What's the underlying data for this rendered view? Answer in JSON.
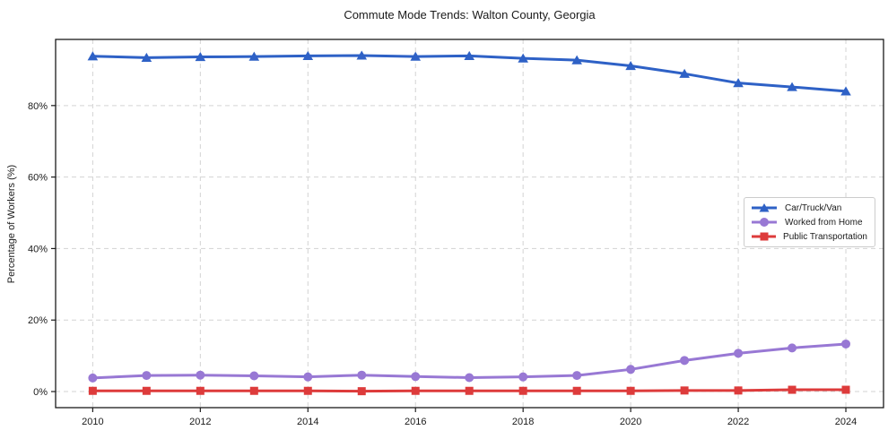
{
  "title": "Commute Mode Trends: Walton County, Georgia",
  "ylabel": "Percentage of Workers (%)",
  "chart_data": {
    "type": "line",
    "title": "Commute Mode Trends: Walton County, Georgia",
    "xlabel": "",
    "ylabel": "Percentage of Workers (%)",
    "x": [
      2010,
      2011,
      2012,
      2013,
      2014,
      2015,
      2016,
      2017,
      2018,
      2019,
      2020,
      2021,
      2022,
      2023,
      2024
    ],
    "series": [
      {
        "name": "Car/Truck/Van",
        "color": "#2e61c6",
        "marker": "triangle",
        "values": [
          93.8,
          93.4,
          93.6,
          93.7,
          93.9,
          94.0,
          93.7,
          93.9,
          93.2,
          92.7,
          91.1,
          88.9,
          86.3,
          85.2,
          84.0
        ]
      },
      {
        "name": "Worked from Home",
        "color": "#9878d4",
        "marker": "circle",
        "values": [
          3.8,
          4.5,
          4.6,
          4.4,
          4.1,
          4.6,
          4.2,
          3.9,
          4.1,
          4.5,
          6.2,
          8.7,
          10.7,
          12.2,
          13.3
        ]
      },
      {
        "name": "Public Transportation",
        "color": "#dd3b3b",
        "marker": "square",
        "values": [
          0.2,
          0.2,
          0.2,
          0.2,
          0.2,
          0.1,
          0.2,
          0.2,
          0.2,
          0.2,
          0.2,
          0.3,
          0.3,
          0.5,
          0.5
        ]
      }
    ],
    "xticks": [
      2010,
      2012,
      2014,
      2016,
      2018,
      2020,
      2022,
      2024
    ],
    "xtick_labels": [
      "2010",
      "2012",
      "2014",
      "2016",
      "2018",
      "2020",
      "2022",
      "2024"
    ],
    "yticks": [
      0,
      20,
      40,
      60,
      80
    ],
    "ytick_labels": [
      "0%",
      "20%",
      "40%",
      "60%",
      "80%"
    ],
    "xlim": [
      2009.31,
      2024.7
    ],
    "ylim": [
      -4.5,
      98.5
    ],
    "grid": true,
    "legend_position": "center-right"
  }
}
